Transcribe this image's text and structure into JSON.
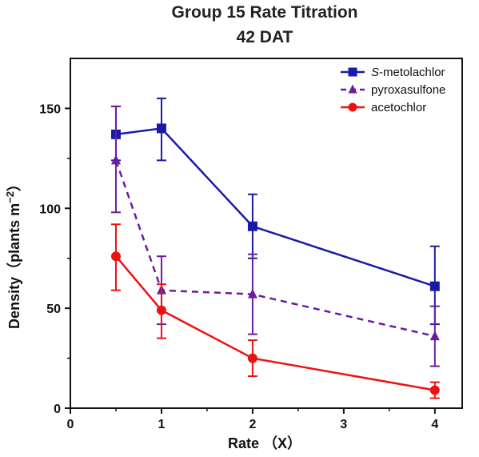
{
  "chart_data": {
    "type": "line",
    "title": "Group 15 Rate Titration",
    "subtitle": "42 DAT",
    "xlabel": "Rate （X）",
    "ylabel_main": "Density（plants m",
    "ylabel_sup": "−2",
    "ylabel_close": "）",
    "xlim": [
      0,
      4.3
    ],
    "ylim": [
      0,
      175
    ],
    "x_ticks": [
      0,
      1,
      2,
      3,
      4
    ],
    "y_ticks": [
      0,
      50,
      100,
      150
    ],
    "x": [
      0.5,
      1,
      2,
      4
    ],
    "legend_position": "top-right",
    "grid": false,
    "series": [
      {
        "name_italic_prefix": "S",
        "name": "-metolachlor",
        "color": "#1a1aaa",
        "marker": "square",
        "dash": "solid",
        "values": [
          137,
          140,
          91,
          61
        ],
        "err_low": [
          13,
          16,
          16,
          19
        ],
        "err_high": [
          14,
          15,
          16,
          20
        ]
      },
      {
        "name": "pyroxasulfone",
        "color": "#6b1d9e",
        "marker": "triangle",
        "dash": "dashed",
        "values": [
          124,
          59,
          57,
          36
        ],
        "err_low": [
          26,
          17,
          20,
          15
        ],
        "err_high": [
          27,
          17,
          20,
          15
        ]
      },
      {
        "name": "acetochlor",
        "color": "#ee1111",
        "marker": "circle",
        "dash": "solid",
        "values": [
          76,
          49,
          25,
          9
        ],
        "err_low": [
          17,
          14,
          9,
          4
        ],
        "err_high": [
          16,
          13,
          9,
          4
        ]
      }
    ]
  }
}
